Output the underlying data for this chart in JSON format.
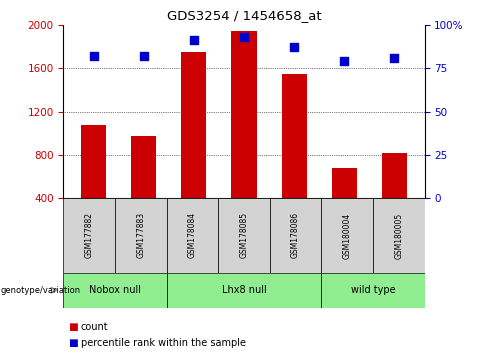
{
  "title": "GDS3254 / 1454658_at",
  "samples": [
    "GSM177882",
    "GSM177883",
    "GSM178084",
    "GSM178085",
    "GSM178086",
    "GSM180004",
    "GSM180005"
  ],
  "counts": [
    1080,
    970,
    1750,
    1940,
    1550,
    680,
    820
  ],
  "percentiles": [
    82,
    82,
    91,
    93,
    87,
    79,
    81
  ],
  "groups_info": [
    {
      "label": "Nobox null",
      "start": 0,
      "end": 2,
      "color": "#90EE90"
    },
    {
      "label": "Lhx8 null",
      "start": 2,
      "end": 5,
      "color": "#90EE90"
    },
    {
      "label": "wild type",
      "start": 5,
      "end": 7,
      "color": "#90EE90"
    }
  ],
  "bar_color": "#CC0000",
  "dot_color": "#0000CC",
  "ylim_left": [
    400,
    2000
  ],
  "ylim_right": [
    0,
    100
  ],
  "yticks_left": [
    400,
    800,
    1200,
    1600,
    2000
  ],
  "yticks_right": [
    0,
    25,
    50,
    75,
    100
  ],
  "grid_values": [
    800,
    1200,
    1600
  ],
  "left_tick_color": "#CC0000",
  "right_tick_color": "#0000CC",
  "background_color": "#ffffff",
  "table_sample_bg": "#D3D3D3",
  "figsize": [
    4.88,
    3.54
  ],
  "dpi": 100
}
